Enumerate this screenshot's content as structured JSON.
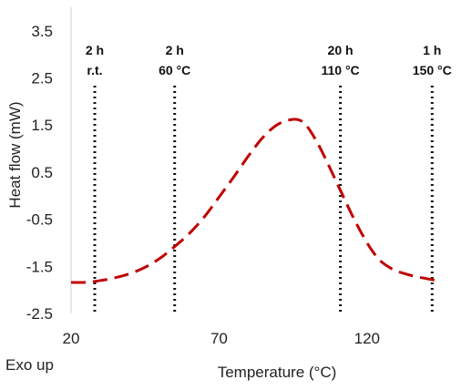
{
  "chart_data": {
    "type": "line",
    "xlabel": "Temperature (°C)",
    "ylabel": "Heat flow (mW)",
    "xlim": [
      20,
      145
    ],
    "ylim": [
      -2.5,
      4.0
    ],
    "x_ticks": [
      20,
      70,
      120
    ],
    "y_ticks": [
      -2.5,
      -1.5,
      -0.5,
      0.5,
      1.5,
      2.5,
      3.5
    ],
    "x_tick_labels": [
      "20",
      "70",
      "120"
    ],
    "y_tick_labels": [
      "-2.5",
      "-1.5",
      "-0.5",
      "0.5",
      "1.5",
      "2.5",
      "3.5"
    ],
    "grid": false,
    "legend": "none",
    "series": [
      {
        "color": "#c00000",
        "style": "dashed",
        "x": [
          20,
          25,
          30,
          35,
          40,
          45,
          50,
          55,
          60,
          65,
          70,
          75,
          80,
          85,
          90,
          95,
          98,
          100,
          103,
          106,
          109,
          112,
          115,
          118,
          121,
          124,
          127,
          130,
          133,
          136,
          140,
          145
        ],
        "y": [
          -1.84,
          -1.84,
          -1.8,
          -1.74,
          -1.65,
          -1.52,
          -1.33,
          -1.08,
          -0.8,
          -0.45,
          -0.03,
          0.4,
          0.85,
          1.25,
          1.52,
          1.62,
          1.58,
          1.45,
          1.15,
          0.78,
          0.38,
          -0.02,
          -0.42,
          -0.78,
          -1.1,
          -1.35,
          -1.5,
          -1.6,
          -1.66,
          -1.71,
          -1.76,
          -1.82
        ]
      }
    ],
    "vlines": [
      {
        "x": 28,
        "label_line1": "2 h",
        "label_line2": "r.t."
      },
      {
        "x": 55,
        "label_line1": "2 h",
        "label_line2": "60 °C"
      },
      {
        "x": 111,
        "label_line1": "20 h",
        "label_line2": "110 °C"
      },
      {
        "x": 142,
        "label_line1": "1 h",
        "label_line2": "150 °C"
      }
    ],
    "note": "Exo up"
  }
}
